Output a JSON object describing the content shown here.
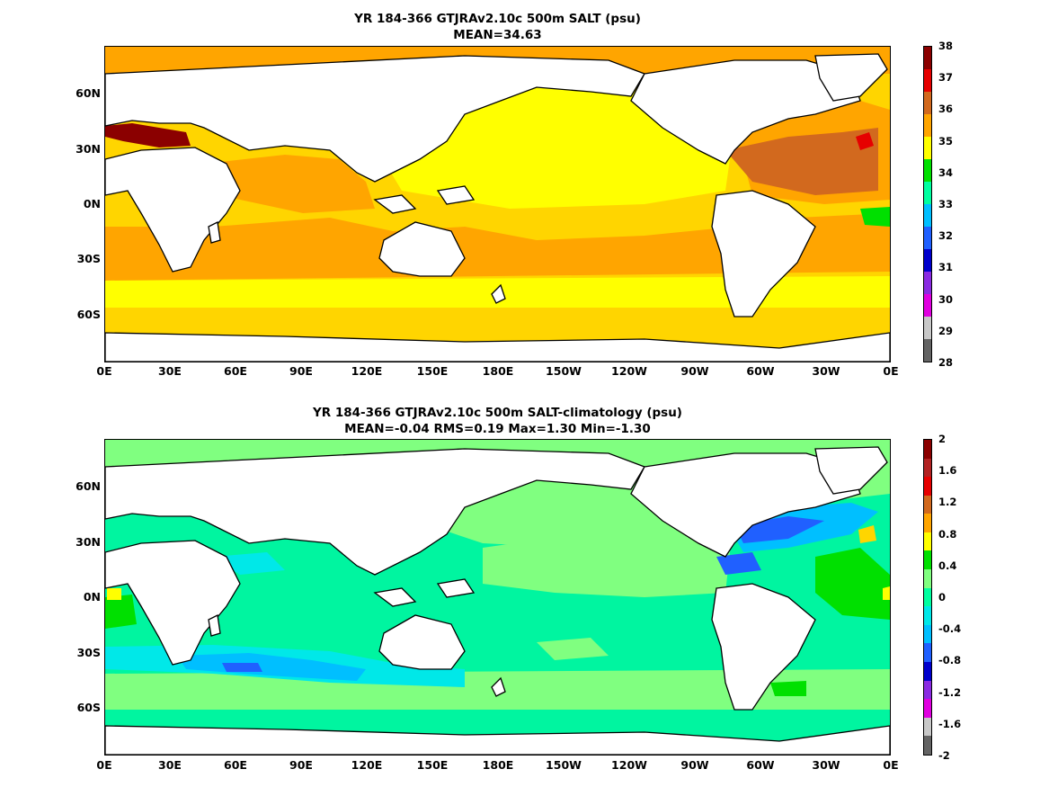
{
  "panels": [
    {
      "title1": "YR 184-366 GTJRAv2.10c 500m SALT (psu)",
      "title2": "MEAN=34.63",
      "y_ticks": [
        "60N",
        "30N",
        "0N",
        "30S",
        "60S"
      ],
      "x_ticks": [
        "0E",
        "30E",
        "60E",
        "90E",
        "120E",
        "150E",
        "180E",
        "150W",
        "120W",
        "90W",
        "60W",
        "30W",
        "0E"
      ],
      "colorbar": {
        "labels": [
          "38",
          "37",
          "36",
          "35",
          "34",
          "33",
          "32",
          "31",
          "30",
          "29",
          "28"
        ],
        "colors": [
          "#8b0000",
          "#e60000",
          "#d2691e",
          "#ffa500",
          "#ffff00",
          "#00e000",
          "#00ffa0",
          "#00bfff",
          "#2060ff",
          "#0000cd",
          "#8a2be2",
          "#e000e0",
          "#c8c8c8",
          "#646464"
        ]
      }
    },
    {
      "title1": "YR 184-366 GTJRAv2.10c 500m SALT-climatology (psu)",
      "title2": "MEAN=-0.04   RMS=0.19   Max=1.30   Min=-1.30",
      "y_ticks": [
        "60N",
        "30N",
        "0N",
        "30S",
        "60S"
      ],
      "x_ticks": [
        "0E",
        "30E",
        "60E",
        "90E",
        "120E",
        "150E",
        "180E",
        "150W",
        "120W",
        "90W",
        "60W",
        "30W",
        "0E"
      ],
      "colorbar": {
        "labels": [
          "2",
          "1.6",
          "1.2",
          "0.8",
          "0.4",
          "0",
          "-0.4",
          "-0.8",
          "-1.2",
          "-1.6",
          "-2"
        ],
        "colors": [
          "#8b0000",
          "#b22222",
          "#e60000",
          "#d2691e",
          "#ffa500",
          "#ffff00",
          "#00e000",
          "#80ff80",
          "#00ffa0",
          "#00e8e8",
          "#00bfff",
          "#2060ff",
          "#0000cd",
          "#8a2be2",
          "#e000e0",
          "#c8c8c8",
          "#646464"
        ]
      }
    }
  ]
}
